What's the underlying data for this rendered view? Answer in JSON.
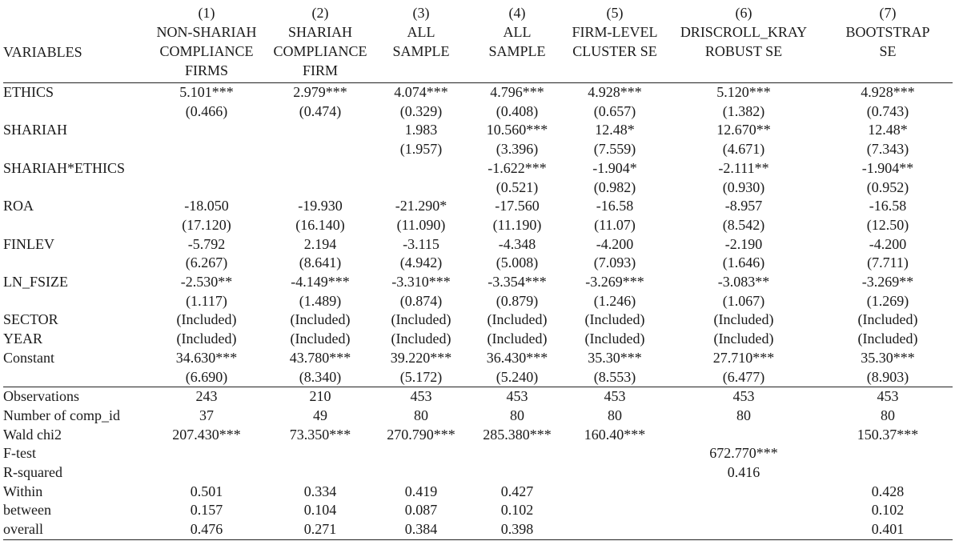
{
  "header": {
    "variables_label": "VARIABLES",
    "columns": [
      {
        "num": "(1)",
        "lines": [
          "NON-SHARIAH",
          "COMPLIANCE",
          "FIRMS"
        ]
      },
      {
        "num": "(2)",
        "lines": [
          "SHARIAH",
          "COMPLIANCE",
          "FIRM"
        ]
      },
      {
        "num": "(3)",
        "lines": [
          "ALL",
          "SAMPLE",
          ""
        ]
      },
      {
        "num": "(4)",
        "lines": [
          "ALL",
          "SAMPLE",
          ""
        ]
      },
      {
        "num": "(5)",
        "lines": [
          "FIRM-LEVEL",
          "CLUSTER SE",
          ""
        ]
      },
      {
        "num": "(6)",
        "lines": [
          "DRISCROLL_KRAY",
          "ROBUST SE",
          ""
        ]
      },
      {
        "num": "(7)",
        "lines": [
          "BOOTSTRAP",
          "SE",
          ""
        ]
      }
    ]
  },
  "coefficients": [
    {
      "label": "ETHICS",
      "coef": [
        "5.101***",
        "2.979***",
        "4.074***",
        "4.796***",
        "4.928***",
        "5.120***",
        "4.928***"
      ],
      "se": [
        "(0.466)",
        "(0.474)",
        "(0.329)",
        "(0.408)",
        "(0.657)",
        "(1.382)",
        "(0.743)"
      ]
    },
    {
      "label": "SHARIAH",
      "coef": [
        "",
        "",
        "1.983",
        "10.560***",
        "12.48*",
        "12.670**",
        "12.48*"
      ],
      "se": [
        "",
        "",
        "(1.957)",
        "(3.396)",
        "(7.559)",
        "(4.671)",
        "(7.343)"
      ]
    },
    {
      "label": "SHARIAH*ETHICS",
      "coef": [
        "",
        "",
        "",
        "-1.622***",
        "-1.904*",
        "-2.111**",
        "-1.904**"
      ],
      "se": [
        "",
        "",
        "",
        "(0.521)",
        "(0.982)",
        "(0.930)",
        "(0.952)"
      ]
    },
    {
      "label": "ROA",
      "coef": [
        "-18.050",
        "-19.930",
        "-21.290*",
        "-17.560",
        "-16.58",
        "-8.957",
        "-16.58"
      ],
      "se": [
        "(17.120)",
        "(16.140)",
        "(11.090)",
        "(11.190)",
        "(11.07)",
        "(8.542)",
        "(12.50)"
      ]
    },
    {
      "label": "FINLEV",
      "coef": [
        "-5.792",
        "2.194",
        "-3.115",
        "-4.348",
        "-4.200",
        "-2.190",
        "-4.200"
      ],
      "se": [
        "(6.267)",
        "(8.641)",
        "(4.942)",
        "(5.008)",
        "(7.093)",
        "(1.646)",
        "(7.711)"
      ]
    },
    {
      "label": "LN_FSIZE",
      "coef": [
        "-2.530**",
        "-4.149***",
        "-3.310***",
        "-3.354***",
        "-3.269***",
        "-3.083**",
        "-3.269**"
      ],
      "se": [
        "(1.117)",
        "(1.489)",
        "(0.874)",
        "(0.879)",
        "(1.246)",
        "(1.067)",
        "(1.269)"
      ]
    }
  ],
  "fixed_effects": [
    {
      "label": "SECTOR",
      "values": [
        "(Included)",
        "(Included)",
        "(Included)",
        "(Included)",
        "(Included)",
        "(Included)",
        "(Included)"
      ]
    },
    {
      "label": "YEAR",
      "values": [
        "(Included)",
        "(Included)",
        "(Included)",
        "(Included)",
        "(Included)",
        "(Included)",
        "(Included)"
      ]
    }
  ],
  "constant": {
    "label": "Constant",
    "coef": [
      "34.630***",
      "43.780***",
      "39.220***",
      "36.430***",
      "35.30***",
      "27.710***",
      "35.30***"
    ],
    "se": [
      "(6.690)",
      "(8.340)",
      "(5.172)",
      "(5.240)",
      "(8.553)",
      "(6.477)",
      "(8.903)"
    ]
  },
  "stats": [
    {
      "label": "Observations",
      "values": [
        "243",
        "210",
        "453",
        "453",
        "453",
        "453",
        "453"
      ]
    },
    {
      "label": "Number of comp_id",
      "values": [
        "37",
        "49",
        "80",
        "80",
        "80",
        "80",
        "80"
      ]
    },
    {
      "label": "Wald chi2",
      "values": [
        "207.430***",
        "73.350***",
        "270.790***",
        "285.380***",
        "160.40***",
        "",
        "150.37***"
      ]
    },
    {
      "label": "F-test",
      "values": [
        "",
        "",
        "",
        "",
        "",
        "672.770***",
        ""
      ]
    },
    {
      "label": "R-squared",
      "values": [
        "",
        "",
        "",
        "",
        "",
        "0.416",
        ""
      ]
    },
    {
      "label": "Within",
      "values": [
        "0.501",
        "0.334",
        "0.419",
        "0.427",
        "",
        "",
        "0.428"
      ]
    },
    {
      "label": "between",
      "values": [
        "0.157",
        "0.104",
        "0.087",
        "0.102",
        "",
        "",
        "0.102"
      ]
    },
    {
      "label": "overall",
      "values": [
        "0.476",
        "0.271",
        "0.384",
        "0.398",
        "",
        "",
        "0.401"
      ]
    }
  ]
}
